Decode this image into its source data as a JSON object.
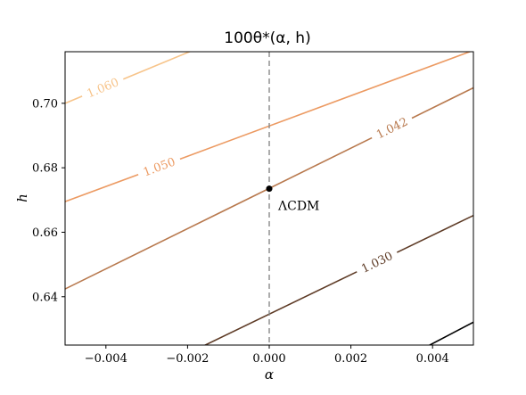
{
  "chart_data": {
    "type": "line",
    "title": "100θ*(α, h)",
    "xlabel": "α",
    "ylabel": "h",
    "xlim": [
      -0.005,
      0.005
    ],
    "ylim": [
      0.625,
      0.716
    ],
    "xticks": [
      -0.004,
      -0.002,
      0.0,
      0.002,
      0.004
    ],
    "xtick_labels": [
      "−0.004",
      "−0.002",
      "0.000",
      "0.002",
      "0.004"
    ],
    "yticks": [
      0.64,
      0.66,
      0.68,
      0.7
    ],
    "ytick_labels": [
      "0.64",
      "0.66",
      "0.68",
      "0.70"
    ],
    "grid": false,
    "contours": [
      {
        "label": "1.060",
        "color": "#f7c48a",
        "x": [
          -0.005,
          -0.0018
        ],
        "y": [
          0.7,
          0.7168
        ],
        "label_x": -0.0041,
        "label_y": 0.7055
      },
      {
        "label": "1.050",
        "color": "#ec9a62",
        "x": [
          -0.005,
          0.00508
        ],
        "y": [
          0.6695,
          0.7168
        ],
        "label_x": -0.0029,
        "label_y": 0.6873
      },
      {
        "label": "1.042",
        "color": "#b8794e",
        "x": [
          -0.005,
          0.005
        ],
        "y": [
          0.6424,
          0.7048
        ],
        "label_x": 0.0032,
        "label_y": 0.6873
      },
      {
        "label": "1.030",
        "color": "#5e3b26",
        "x": [
          -0.0016,
          0.005
        ],
        "y": [
          0.6248,
          0.6652
        ],
        "label_x": 0.0027,
        "label_y": 0.6491
      },
      {
        "label": "",
        "color": "#000000",
        "x": [
          0.0039,
          0.005
        ],
        "y": [
          0.6248,
          0.6321
        ]
      }
    ],
    "vline": {
      "x": 0.0,
      "style": "dashed",
      "color": "#888888"
    },
    "point": {
      "x": 0.0,
      "y": 0.6735,
      "label": "ΛCDM"
    }
  }
}
